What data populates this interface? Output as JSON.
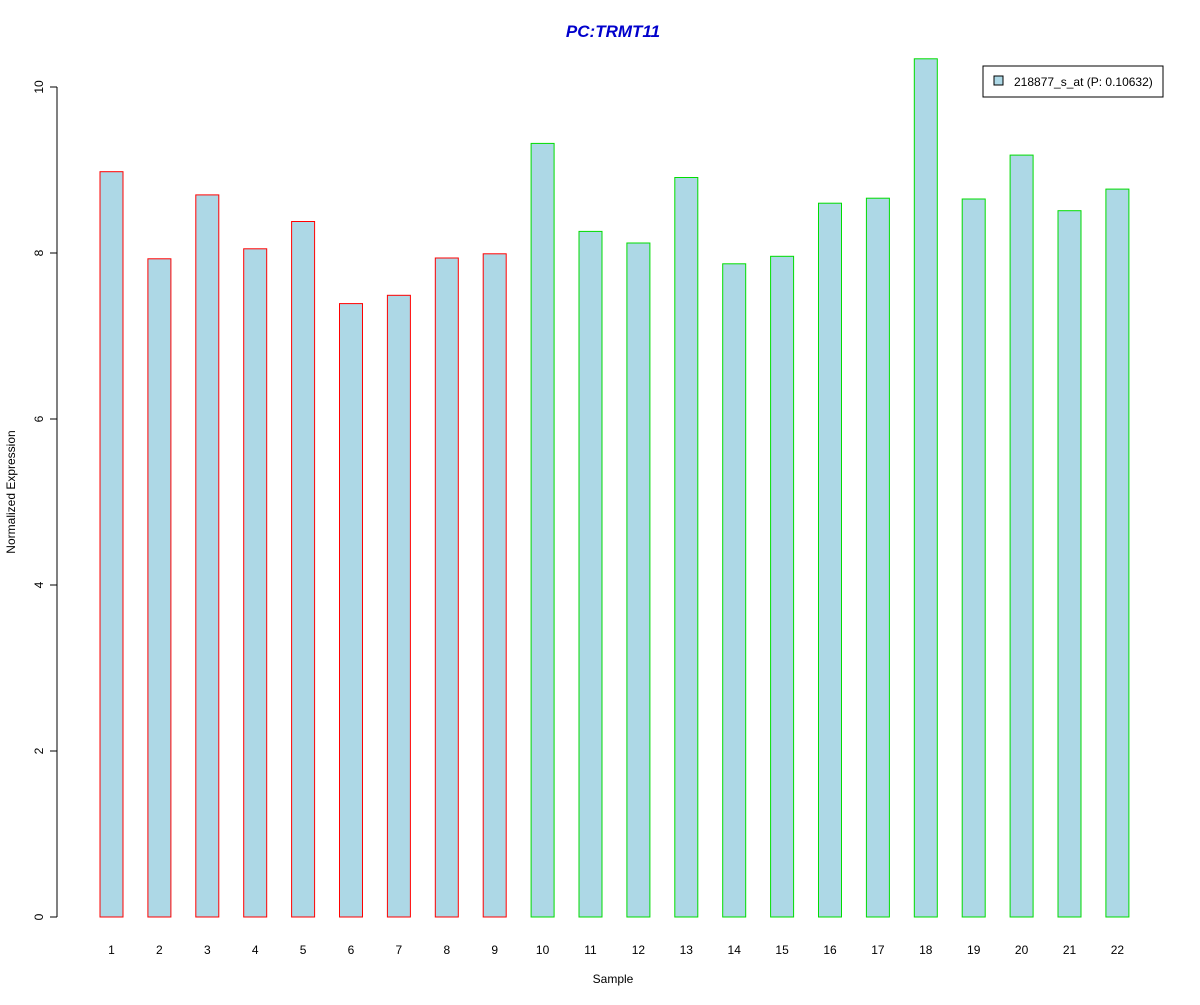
{
  "chart_data": {
    "type": "bar",
    "title": "PC:TRMT11",
    "xlabel": "Sample",
    "ylabel": "Normalized Expression",
    "ylim": [
      0,
      10.4
    ],
    "yticks": [
      0,
      2,
      4,
      6,
      8,
      10
    ],
    "categories": [
      "1",
      "2",
      "3",
      "4",
      "5",
      "6",
      "7",
      "8",
      "9",
      "10",
      "11",
      "12",
      "13",
      "14",
      "15",
      "16",
      "17",
      "18",
      "19",
      "20",
      "21",
      "22"
    ],
    "series": [
      {
        "name": "218877_s_at (P: 0.10632)",
        "values": [
          8.98,
          7.93,
          8.7,
          8.05,
          8.38,
          7.39,
          7.49,
          7.94,
          7.99,
          9.32,
          8.26,
          8.12,
          8.91,
          7.87,
          7.96,
          8.6,
          8.66,
          10.34,
          8.65,
          9.18,
          8.51,
          8.77
        ]
      }
    ],
    "group_border_colors": [
      "#ff0000",
      "#ff0000",
      "#ff0000",
      "#ff0000",
      "#ff0000",
      "#ff0000",
      "#ff0000",
      "#ff0000",
      "#ff0000",
      "#00dd00",
      "#00dd00",
      "#00dd00",
      "#00dd00",
      "#00dd00",
      "#00dd00",
      "#00dd00",
      "#00dd00",
      "#00dd00",
      "#00dd00",
      "#00dd00",
      "#00dd00",
      "#00dd00"
    ],
    "bar_fill": "#add8e6",
    "title_color": "#0000cc",
    "legend": {
      "position": "top-right",
      "label": "218877_s_at (P: 0.10632)"
    },
    "grid": false
  }
}
